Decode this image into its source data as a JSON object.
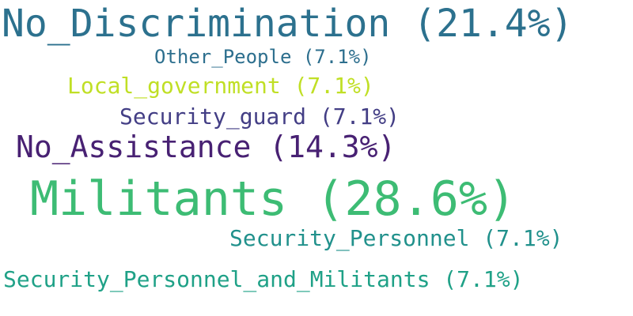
{
  "words": [
    {
      "text": "No_Discrimination (21.4%)",
      "color": "#2c718e"
    },
    {
      "text": "Other_People (7.1%)",
      "color": "#2d6f8e"
    },
    {
      "text": "Local_government (7.1%)",
      "color": "#c0df25"
    },
    {
      "text": "Security_guard (7.1%)",
      "color": "#433e85"
    },
    {
      "text": "No_Assistance (14.3%)",
      "color": "#482173"
    },
    {
      "text": "Militants (28.6%)",
      "color": "#3dbc74"
    },
    {
      "text": "Security_Personnel (7.1%)",
      "color": "#21918c"
    },
    {
      "text": "Security_Personnel_and_Militants (7.1%)",
      "color": "#1fa187"
    }
  ]
}
